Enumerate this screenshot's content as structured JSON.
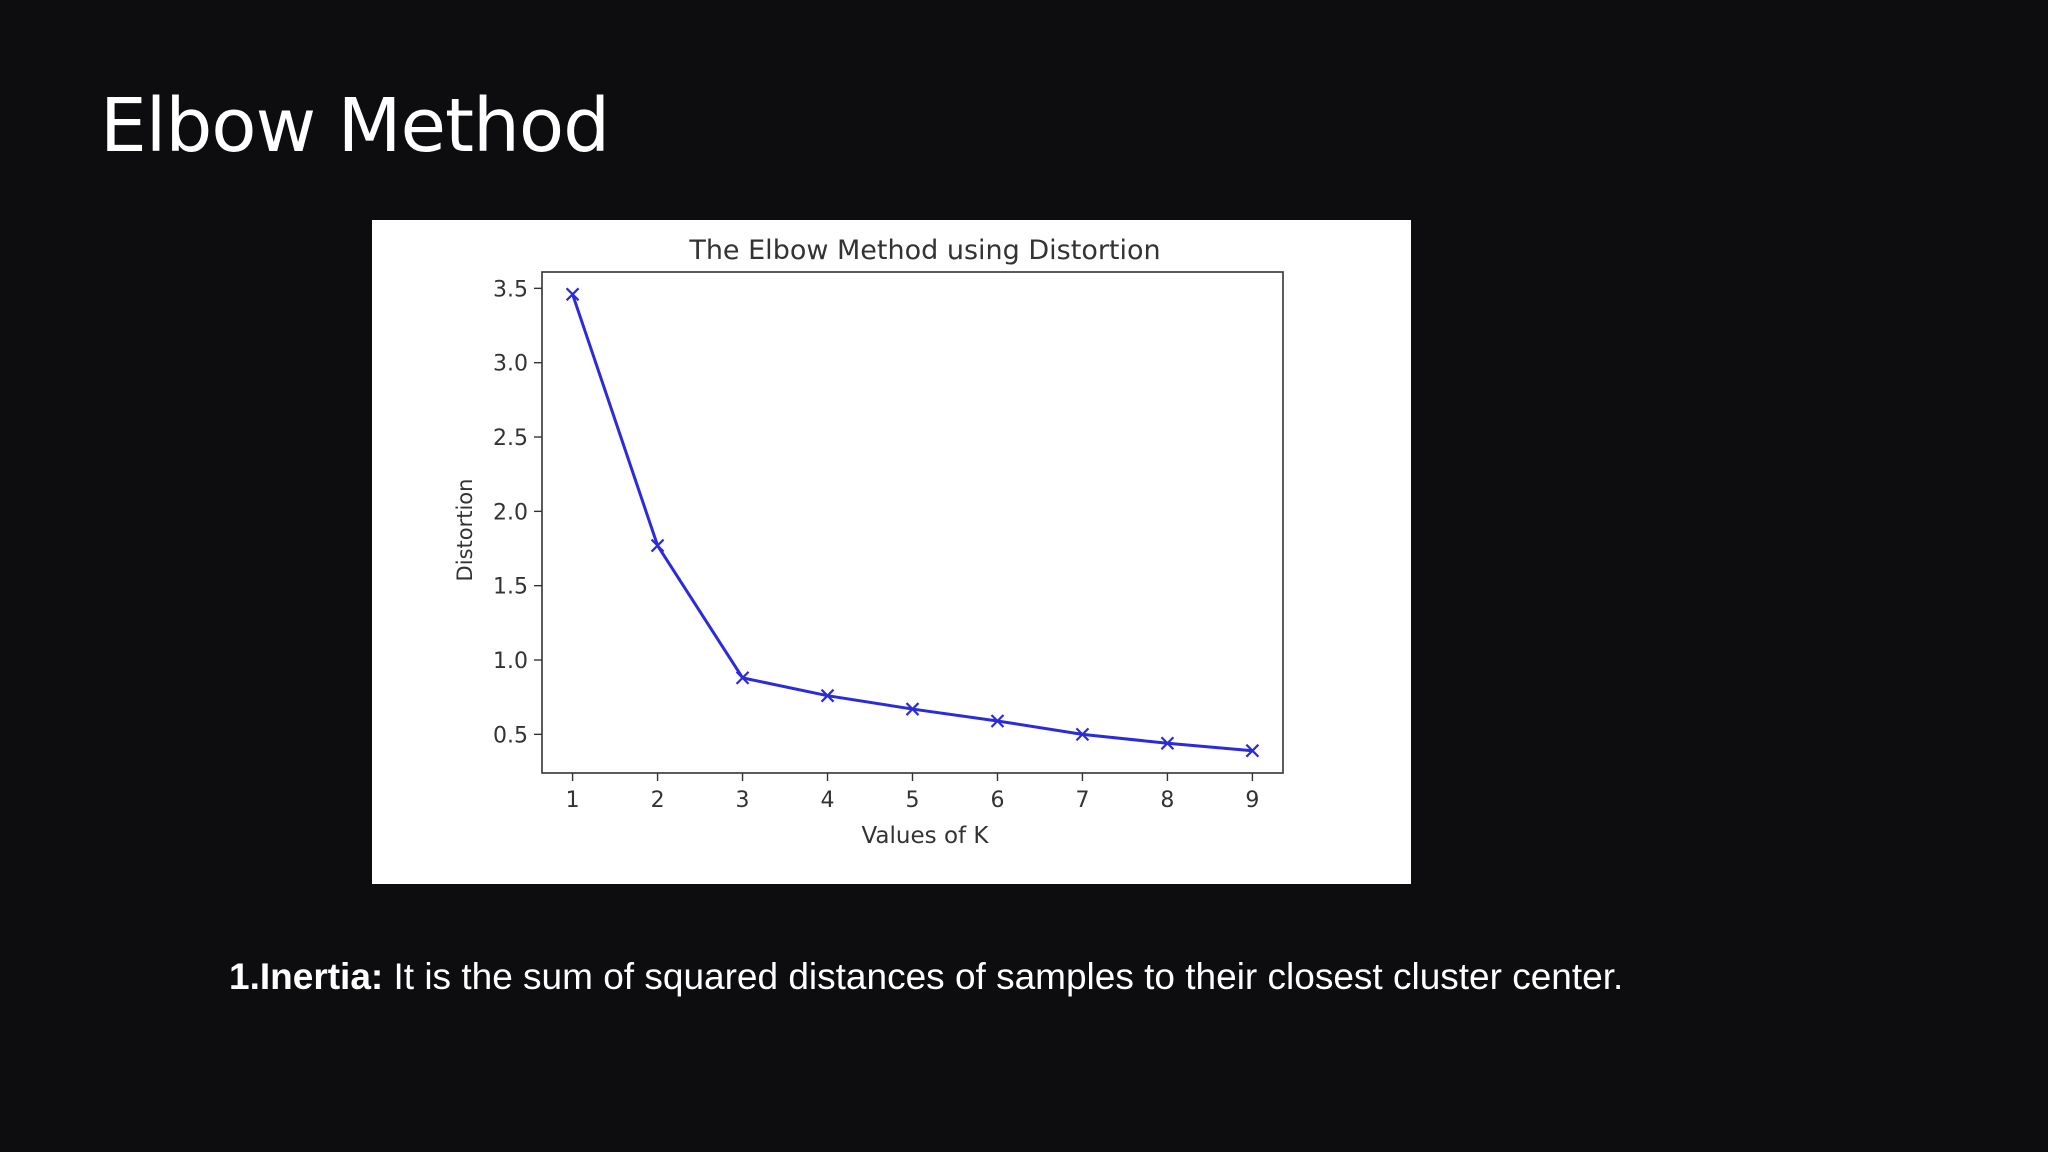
{
  "slide": {
    "title": "Elbow Method",
    "caption_term": "1.Inertia:",
    "caption_text": " It is the sum of squared distances of samples to their closest cluster center."
  },
  "chart_data": {
    "type": "line",
    "title": "The Elbow Method using Distortion",
    "xlabel": "Values of K",
    "ylabel": "Distortion",
    "x": [
      1,
      2,
      3,
      4,
      5,
      6,
      7,
      8,
      9
    ],
    "series": [
      {
        "values": [
          3.46,
          1.77,
          0.88,
          0.76,
          0.67,
          0.59,
          0.5,
          0.44,
          0.39
        ],
        "color": "#2b2bdc",
        "marker": "x"
      }
    ],
    "xticks": [
      "1",
      "2",
      "3",
      "4",
      "5",
      "6",
      "7",
      "8",
      "9"
    ],
    "yticks": [
      "0.5",
      "1.0",
      "1.5",
      "2.0",
      "2.5",
      "3.0",
      "3.5"
    ],
    "ytick_values": [
      0.5,
      1.0,
      1.5,
      2.0,
      2.5,
      3.0,
      3.5
    ],
    "xlim": [
      0.64,
      9.36
    ],
    "ylim": [
      0.24,
      3.61
    ],
    "grid": false,
    "legend": "none"
  }
}
